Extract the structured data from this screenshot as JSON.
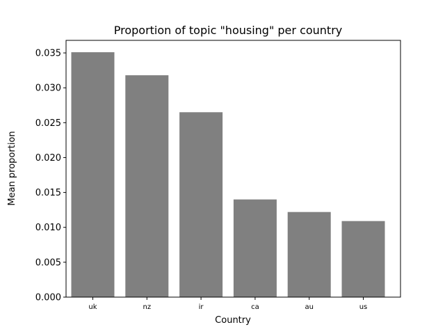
{
  "chart_data": {
    "type": "bar",
    "title": "Proportion of topic \"housing\" per country",
    "xlabel": "Country",
    "ylabel": "Mean proportion",
    "categories": [
      "uk",
      "nz",
      "ir",
      "ca",
      "au",
      "us"
    ],
    "values": [
      0.0351,
      0.0318,
      0.0265,
      0.014,
      0.0122,
      0.0109
    ],
    "ylim": [
      0,
      0.0368
    ],
    "yticks": [
      0.0,
      0.005,
      0.01,
      0.015,
      0.02,
      0.025,
      0.03,
      0.035
    ],
    "ytick_labels": [
      "0.000",
      "0.005",
      "0.010",
      "0.015",
      "0.020",
      "0.025",
      "0.030",
      "0.035"
    ],
    "bar_color": "#808080",
    "grid": false,
    "legend": "none"
  }
}
